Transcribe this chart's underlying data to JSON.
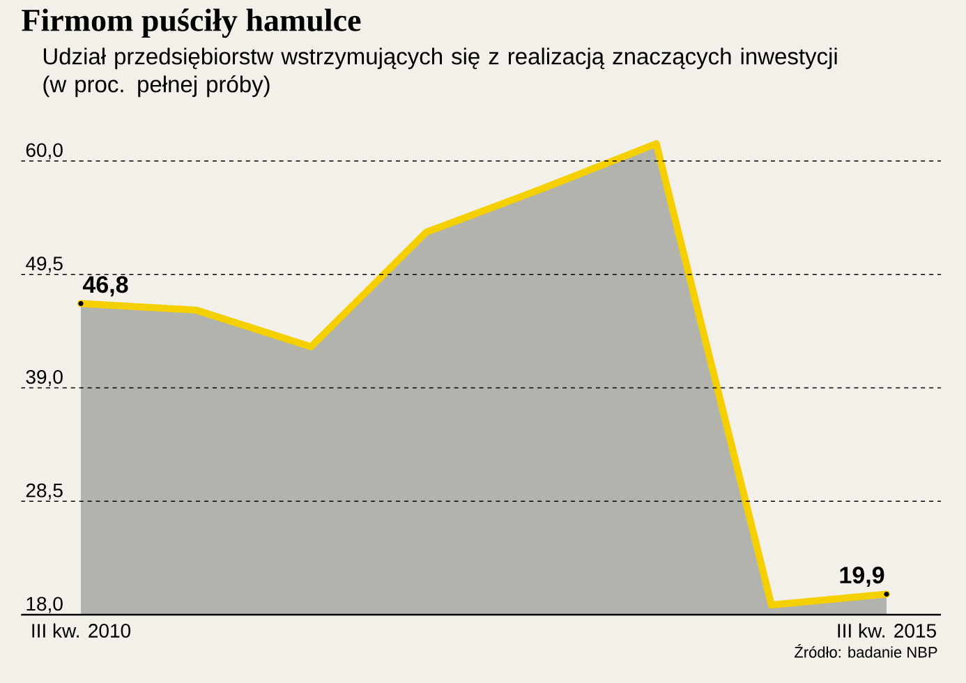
{
  "chart_data": {
    "type": "area",
    "title": "Firmom puściły hamulce",
    "subtitle": "Udział przedsiębiorstw wstrzymujących się z realizacją znaczących inwestycji (w proc. pełnej próby)",
    "categories": [
      "III kw. 2010",
      null,
      null,
      null,
      null,
      null,
      null,
      "III kw. 2015"
    ],
    "series": [
      {
        "color": "#b3b3ae",
        "values": [
          46.8,
          46.2,
          42.8,
          53.4,
          57.4,
          61.6,
          18.9,
          19.9
        ],
        "value_labels": [
          "46,8",
          null,
          null,
          null,
          null,
          null,
          null,
          "19,9"
        ]
      }
    ],
    "ylim": [
      18,
      62
    ],
    "yticks": [
      {
        "value": 18,
        "label": "18,0"
      },
      {
        "value": 28.5,
        "label": "28,5"
      },
      {
        "value": 39,
        "label": "39,0"
      },
      {
        "value": 49.5,
        "label": "49,5"
      },
      {
        "value": 60,
        "label": "60,0"
      }
    ],
    "grid": "y",
    "annotations": [
      "Źródło: badanie NBP"
    ]
  }
}
